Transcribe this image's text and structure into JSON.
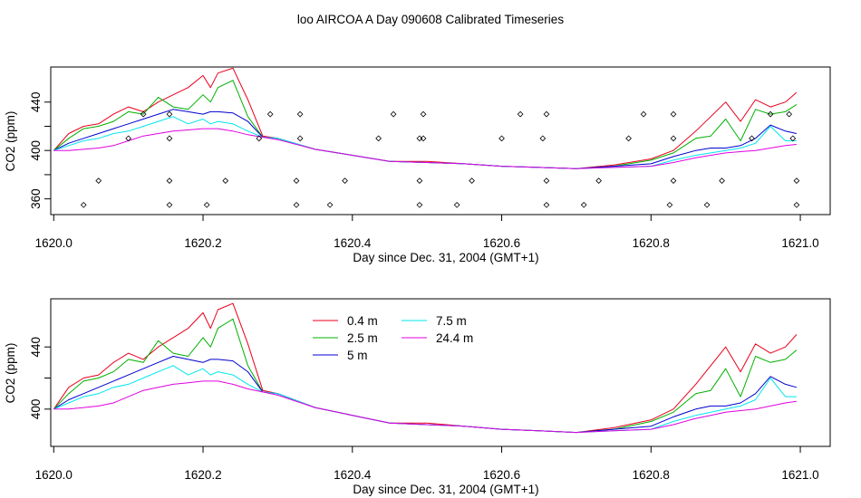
{
  "page_title": "loo AIRCOA A  Day 090608  Calibrated Timeseries",
  "colors": {
    "h0_4": "#e8001c",
    "h2_5": "#00b000",
    "h5": "#0000d0",
    "h7_5": "#00e5ee",
    "h24_4": "#e000e0",
    "axis": "#000000"
  },
  "chart_data": [
    {
      "type": "line",
      "title": "",
      "xlabel": "Day since Dec. 31, 2004 (GMT+1)",
      "ylabel": "CO2 (ppm)",
      "xlim": [
        1619.996,
        1621.04
      ],
      "ylim": [
        347,
        469
      ],
      "xticks": [
        {
          "v": 1620.0,
          "label": "1620.0"
        },
        {
          "v": 1620.2,
          "label": "1620.2"
        },
        {
          "v": 1620.4,
          "label": "1620.4"
        },
        {
          "v": 1620.6,
          "label": "1620.6"
        },
        {
          "v": 1620.8,
          "label": "1620.8"
        },
        {
          "v": 1621.0,
          "label": "1621.0"
        }
      ],
      "yticks": [
        {
          "v": 360,
          "label": "360"
        },
        {
          "v": 380,
          "label": ""
        },
        {
          "v": 400,
          "label": "400"
        },
        {
          "v": 420,
          "label": ""
        },
        {
          "v": 440,
          "label": "440"
        }
      ],
      "legend": false,
      "series": [
        {
          "key": "h0_4",
          "color": "#e8001c",
          "x": [
            1620.0,
            1620.02,
            1620.04,
            1620.06,
            1620.08,
            1620.1,
            1620.12,
            1620.14,
            1620.16,
            1620.18,
            1620.2,
            1620.21,
            1620.22,
            1620.24,
            1620.26,
            1620.28,
            1620.3,
            1620.35,
            1620.4,
            1620.45,
            1620.5,
            1620.55,
            1620.6,
            1620.65,
            1620.7,
            1620.75,
            1620.8,
            1620.83,
            1620.86,
            1620.88,
            1620.9,
            1620.92,
            1620.94,
            1620.96,
            1620.98,
            1620.995
          ],
          "y": [
            400,
            414,
            420,
            422,
            430,
            436,
            432,
            440,
            446,
            452,
            462,
            452,
            464,
            468,
            442,
            412,
            410,
            401,
            396,
            391,
            391,
            389,
            387,
            386,
            385,
            388,
            393,
            400,
            416,
            428,
            440,
            424,
            442,
            436,
            440,
            448
          ]
        },
        {
          "key": "h2_5",
          "color": "#00b000",
          "x": [
            1620.0,
            1620.02,
            1620.04,
            1620.06,
            1620.08,
            1620.1,
            1620.12,
            1620.14,
            1620.16,
            1620.18,
            1620.2,
            1620.21,
            1620.22,
            1620.24,
            1620.26,
            1620.28,
            1620.3,
            1620.35,
            1620.4,
            1620.45,
            1620.5,
            1620.55,
            1620.6,
            1620.65,
            1620.7,
            1620.75,
            1620.8,
            1620.83,
            1620.86,
            1620.88,
            1620.9,
            1620.92,
            1620.94,
            1620.96,
            1620.98,
            1620.995
          ],
          "y": [
            400,
            410,
            418,
            420,
            424,
            432,
            430,
            444,
            436,
            434,
            446,
            440,
            452,
            458,
            428,
            411,
            410,
            401,
            396,
            391,
            390,
            389,
            387,
            386,
            385,
            387,
            392,
            398,
            410,
            412,
            426,
            408,
            434,
            430,
            432,
            438
          ]
        },
        {
          "key": "h5",
          "color": "#0000d0",
          "x": [
            1620.0,
            1620.02,
            1620.04,
            1620.06,
            1620.08,
            1620.1,
            1620.12,
            1620.14,
            1620.16,
            1620.18,
            1620.2,
            1620.21,
            1620.22,
            1620.24,
            1620.26,
            1620.28,
            1620.3,
            1620.35,
            1620.4,
            1620.45,
            1620.5,
            1620.55,
            1620.6,
            1620.65,
            1620.7,
            1620.75,
            1620.8,
            1620.83,
            1620.86,
            1620.88,
            1620.9,
            1620.92,
            1620.94,
            1620.96,
            1620.98,
            1620.995
          ],
          "y": [
            400,
            406,
            410,
            414,
            418,
            422,
            426,
            430,
            434,
            432,
            430,
            432,
            432,
            431,
            424,
            411,
            410,
            401,
            396,
            391,
            390,
            389,
            387,
            386,
            385,
            387,
            389,
            395,
            400,
            402,
            402,
            404,
            410,
            421,
            416,
            414
          ]
        },
        {
          "key": "h7_5",
          "color": "#00e5ee",
          "x": [
            1620.0,
            1620.02,
            1620.04,
            1620.06,
            1620.08,
            1620.1,
            1620.12,
            1620.14,
            1620.16,
            1620.18,
            1620.2,
            1620.21,
            1620.22,
            1620.24,
            1620.26,
            1620.28,
            1620.3,
            1620.35,
            1620.4,
            1620.45,
            1620.5,
            1620.55,
            1620.6,
            1620.65,
            1620.7,
            1620.75,
            1620.8,
            1620.83,
            1620.86,
            1620.88,
            1620.9,
            1620.92,
            1620.94,
            1620.96,
            1620.98,
            1620.995
          ],
          "y": [
            400,
            404,
            408,
            410,
            414,
            416,
            420,
            424,
            428,
            422,
            426,
            422,
            424,
            422,
            416,
            411,
            410,
            401,
            396,
            391,
            390,
            389,
            387,
            386,
            385,
            386,
            387,
            392,
            396,
            398,
            400,
            402,
            406,
            420,
            408,
            408
          ]
        },
        {
          "key": "h24_4",
          "color": "#e000e0",
          "x": [
            1620.0,
            1620.02,
            1620.04,
            1620.06,
            1620.08,
            1620.1,
            1620.12,
            1620.14,
            1620.16,
            1620.18,
            1620.2,
            1620.21,
            1620.22,
            1620.24,
            1620.26,
            1620.28,
            1620.3,
            1620.35,
            1620.4,
            1620.45,
            1620.5,
            1620.55,
            1620.6,
            1620.65,
            1620.7,
            1620.75,
            1620.8,
            1620.83,
            1620.86,
            1620.88,
            1620.9,
            1620.92,
            1620.94,
            1620.96,
            1620.98,
            1620.995
          ],
          "y": [
            400,
            400,
            401,
            402,
            404,
            408,
            412,
            414,
            416,
            417,
            418,
            418,
            418,
            416,
            413,
            411,
            409,
            401,
            396,
            391,
            390,
            389,
            387,
            386,
            385,
            386,
            387,
            390,
            394,
            396,
            398,
            399,
            400,
            402,
            404,
            405
          ]
        }
      ],
      "markers": {
        "type": "scatter",
        "symbol": "open-diamond",
        "x": [
          1620.04,
          1620.06,
          1620.1,
          1620.12,
          1620.155,
          1620.155,
          1620.155,
          1620.155,
          1620.205,
          1620.23,
          1620.275,
          1620.29,
          1620.325,
          1620.325,
          1620.33,
          1620.33,
          1620.37,
          1620.39,
          1620.435,
          1620.455,
          1620.49,
          1620.49,
          1620.49,
          1620.495,
          1620.495,
          1620.54,
          1620.56,
          1620.6,
          1620.625,
          1620.655,
          1620.66,
          1620.66,
          1620.66,
          1620.71,
          1620.73,
          1620.77,
          1620.79,
          1620.825,
          1620.83,
          1620.83,
          1620.83,
          1620.875,
          1620.895,
          1620.935,
          1620.96,
          1620.985,
          1620.99,
          1620.995,
          1620.995
        ],
        "y": [
          355,
          375,
          410,
          430,
          355,
          375,
          410,
          430,
          355,
          375,
          410,
          430,
          355,
          375,
          410,
          430,
          355,
          375,
          410,
          430,
          355,
          375,
          410,
          430,
          410,
          355,
          375,
          410,
          430,
          410,
          430,
          375,
          355,
          355,
          375,
          410,
          430,
          355,
          375,
          410,
          430,
          355,
          375,
          410,
          430,
          430,
          410,
          375,
          355
        ]
      }
    },
    {
      "type": "line",
      "title": "",
      "xlabel": "Day since Dec. 31, 2004 (GMT+1)",
      "ylabel": "CO2 (ppm)",
      "xlim": [
        1619.996,
        1621.04
      ],
      "ylim": [
        376,
        471
      ],
      "xticks": [
        {
          "v": 1620.0,
          "label": "1620.0"
        },
        {
          "v": 1620.2,
          "label": "1620.2"
        },
        {
          "v": 1620.4,
          "label": "1620.4"
        },
        {
          "v": 1620.6,
          "label": "1620.6"
        },
        {
          "v": 1620.8,
          "label": "1620.8"
        },
        {
          "v": 1621.0,
          "label": "1621.0"
        }
      ],
      "yticks": [
        {
          "v": 400,
          "label": "400"
        },
        {
          "v": 420,
          "label": ""
        },
        {
          "v": 440,
          "label": "440"
        }
      ],
      "legend": true,
      "legend_placement": "top-center",
      "series": [
        {
          "key": "h0_4",
          "name": "0.4 m",
          "color": "#e8001c",
          "x": [
            1620.0,
            1620.02,
            1620.04,
            1620.06,
            1620.08,
            1620.1,
            1620.12,
            1620.14,
            1620.16,
            1620.18,
            1620.2,
            1620.21,
            1620.22,
            1620.24,
            1620.26,
            1620.28,
            1620.3,
            1620.35,
            1620.4,
            1620.45,
            1620.5,
            1620.55,
            1620.6,
            1620.65,
            1620.7,
            1620.75,
            1620.8,
            1620.83,
            1620.86,
            1620.88,
            1620.9,
            1620.92,
            1620.94,
            1620.96,
            1620.98,
            1620.995
          ],
          "y": [
            400,
            414,
            420,
            422,
            430,
            436,
            432,
            440,
            446,
            452,
            462,
            452,
            464,
            468,
            442,
            412,
            410,
            401,
            396,
            391,
            391,
            389,
            387,
            386,
            385,
            388,
            393,
            400,
            416,
            428,
            440,
            424,
            442,
            436,
            440,
            448
          ]
        },
        {
          "key": "h2_5",
          "name": "2.5 m",
          "color": "#00b000",
          "x": [
            1620.0,
            1620.02,
            1620.04,
            1620.06,
            1620.08,
            1620.1,
            1620.12,
            1620.14,
            1620.16,
            1620.18,
            1620.2,
            1620.21,
            1620.22,
            1620.24,
            1620.26,
            1620.28,
            1620.3,
            1620.35,
            1620.4,
            1620.45,
            1620.5,
            1620.55,
            1620.6,
            1620.65,
            1620.7,
            1620.75,
            1620.8,
            1620.83,
            1620.86,
            1620.88,
            1620.9,
            1620.92,
            1620.94,
            1620.96,
            1620.98,
            1620.995
          ],
          "y": [
            400,
            410,
            418,
            420,
            424,
            432,
            430,
            444,
            436,
            434,
            446,
            440,
            452,
            458,
            428,
            411,
            410,
            401,
            396,
            391,
            390,
            389,
            387,
            386,
            385,
            387,
            392,
            398,
            410,
            412,
            426,
            408,
            434,
            430,
            432,
            438
          ]
        },
        {
          "key": "h5",
          "name": "5 m",
          "color": "#0000d0",
          "x": [
            1620.0,
            1620.02,
            1620.04,
            1620.06,
            1620.08,
            1620.1,
            1620.12,
            1620.14,
            1620.16,
            1620.18,
            1620.2,
            1620.21,
            1620.22,
            1620.24,
            1620.26,
            1620.28,
            1620.3,
            1620.35,
            1620.4,
            1620.45,
            1620.5,
            1620.55,
            1620.6,
            1620.65,
            1620.7,
            1620.75,
            1620.8,
            1620.83,
            1620.86,
            1620.88,
            1620.9,
            1620.92,
            1620.94,
            1620.96,
            1620.98,
            1620.995
          ],
          "y": [
            400,
            406,
            410,
            414,
            418,
            422,
            426,
            430,
            434,
            432,
            430,
            432,
            432,
            431,
            424,
            411,
            410,
            401,
            396,
            391,
            390,
            389,
            387,
            386,
            385,
            387,
            389,
            395,
            400,
            402,
            402,
            404,
            410,
            421,
            416,
            414
          ]
        },
        {
          "key": "h7_5",
          "name": "7.5 m",
          "color": "#00e5ee",
          "x": [
            1620.0,
            1620.02,
            1620.04,
            1620.06,
            1620.08,
            1620.1,
            1620.12,
            1620.14,
            1620.16,
            1620.18,
            1620.2,
            1620.21,
            1620.22,
            1620.24,
            1620.26,
            1620.28,
            1620.3,
            1620.35,
            1620.4,
            1620.45,
            1620.5,
            1620.55,
            1620.6,
            1620.65,
            1620.7,
            1620.75,
            1620.8,
            1620.83,
            1620.86,
            1620.88,
            1620.9,
            1620.92,
            1620.94,
            1620.96,
            1620.98,
            1620.995
          ],
          "y": [
            400,
            404,
            408,
            410,
            414,
            416,
            420,
            424,
            428,
            422,
            426,
            422,
            424,
            422,
            416,
            411,
            410,
            401,
            396,
            391,
            390,
            389,
            387,
            386,
            385,
            386,
            387,
            392,
            396,
            398,
            400,
            402,
            406,
            420,
            408,
            408
          ]
        },
        {
          "key": "h24_4",
          "name": "24.4 m",
          "color": "#e000e0",
          "x": [
            1620.0,
            1620.02,
            1620.04,
            1620.06,
            1620.08,
            1620.1,
            1620.12,
            1620.14,
            1620.16,
            1620.18,
            1620.2,
            1620.21,
            1620.22,
            1620.24,
            1620.26,
            1620.28,
            1620.3,
            1620.35,
            1620.4,
            1620.45,
            1620.5,
            1620.55,
            1620.6,
            1620.65,
            1620.7,
            1620.75,
            1620.8,
            1620.83,
            1620.86,
            1620.88,
            1620.9,
            1620.92,
            1620.94,
            1620.96,
            1620.98,
            1620.995
          ],
          "y": [
            400,
            400,
            401,
            402,
            404,
            408,
            412,
            414,
            416,
            417,
            418,
            418,
            418,
            416,
            413,
            411,
            409,
            401,
            396,
            391,
            390,
            389,
            387,
            386,
            385,
            386,
            387,
            390,
            394,
            396,
            398,
            399,
            400,
            402,
            404,
            405
          ]
        }
      ]
    }
  ]
}
